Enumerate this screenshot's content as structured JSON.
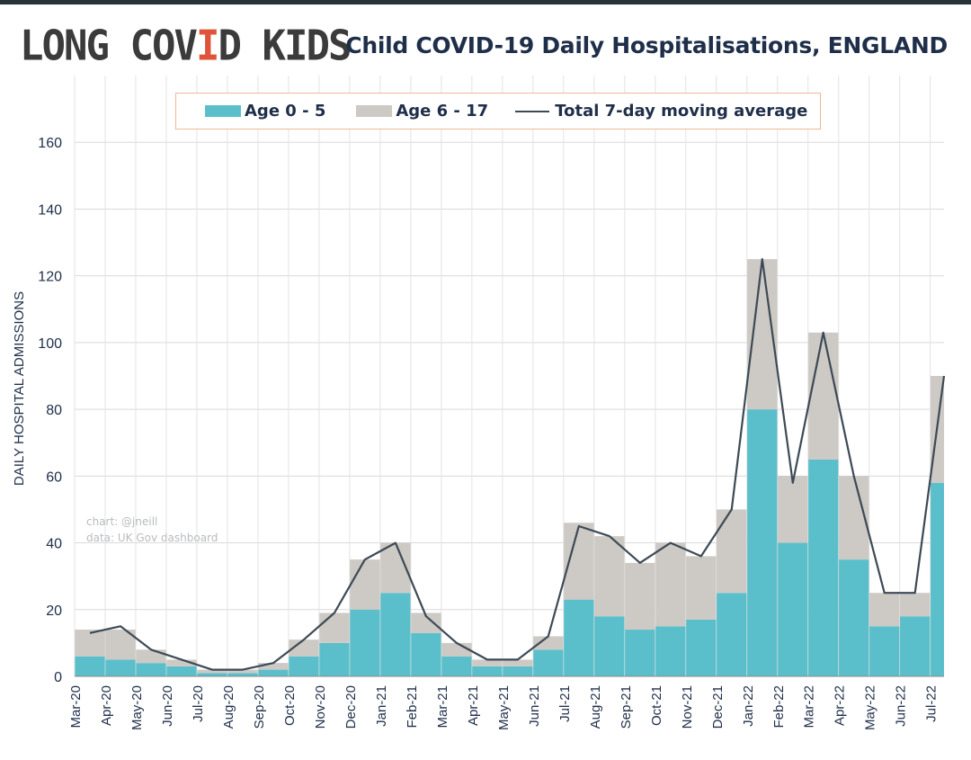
{
  "header": {
    "logo_main": "LONG COVID KIDS",
    "title": "Child COVID-19 Daily Hospitalisations, ENGLAND"
  },
  "credits": {
    "chart_by": "chart: @jneill",
    "data_source": "data: UK Gov dashboard"
  },
  "colors": {
    "age_0_5": "#5bbfcb",
    "age_6_17": "#cdc9c4",
    "moving_average": "#3d4a56",
    "logo_accent": "#e0533b",
    "title": "#1f2f4a",
    "legend_border": "#f0b79a"
  },
  "chart_data": {
    "type": "area",
    "title": "Child COVID-19 Daily Hospitalisations, ENGLAND",
    "xlabel": "",
    "ylabel": "DAILY HOSPITAL ADMISSIONS",
    "ylim": [
      0,
      180
    ],
    "yticks": [
      0,
      20,
      40,
      60,
      80,
      100,
      120,
      140,
      160
    ],
    "grid": true,
    "legend_position": "top",
    "stacked": true,
    "x": [
      "Mar-20",
      "Apr-20",
      "May-20",
      "Jun-20",
      "Jul-20",
      "Aug-20",
      "Sep-20",
      "Oct-20",
      "Nov-20",
      "Dec-20",
      "Jan-21",
      "Feb-21",
      "Mar-21",
      "Apr-21",
      "May-21",
      "Jun-21",
      "Jul-21",
      "Aug-21",
      "Sep-21",
      "Oct-21",
      "Nov-21",
      "Dec-21",
      "Jan-22",
      "Feb-22",
      "Mar-22",
      "Apr-22",
      "May-22",
      "Jun-22",
      "Jul-22"
    ],
    "series": [
      {
        "name": "Age 0 - 5",
        "kind": "stacked-bar",
        "values": [
          6,
          5,
          4,
          3,
          1,
          1,
          2,
          6,
          10,
          20,
          25,
          13,
          6,
          3,
          3,
          8,
          23,
          18,
          14,
          15,
          17,
          25,
          80,
          40,
          65,
          35,
          15,
          18,
          58
        ]
      },
      {
        "name": "Age 6 - 17",
        "kind": "stacked-bar",
        "values": [
          8,
          9,
          4,
          2,
          1,
          1,
          2,
          5,
          9,
          15,
          15,
          6,
          4,
          2,
          2,
          4,
          23,
          24,
          20,
          25,
          19,
          25,
          45,
          20,
          38,
          25,
          10,
          7,
          32
        ]
      },
      {
        "name": "Total 7-day moving average",
        "kind": "line",
        "values": [
          13,
          15,
          8,
          5,
          2,
          2,
          4,
          11,
          19,
          35,
          40,
          18,
          10,
          5,
          5,
          12,
          45,
          42,
          34,
          40,
          36,
          50,
          125,
          58,
          103,
          60,
          25,
          25,
          90
        ]
      }
    ]
  }
}
